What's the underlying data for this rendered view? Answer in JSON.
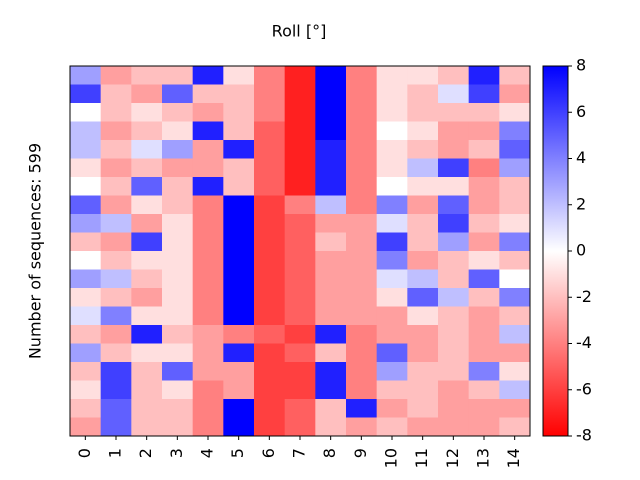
{
  "chart_data": {
    "type": "heatmap",
    "title": "Roll [°]",
    "ylabel": "Number of sequences: 599",
    "categories": [
      0,
      1,
      2,
      3,
      4,
      5,
      6,
      7,
      8,
      9,
      10,
      11,
      12,
      13,
      14
    ],
    "colormap": [
      "#ff0000",
      "#ffffff",
      "#0000ff"
    ],
    "zlim": [
      -8,
      8
    ],
    "zticks": [
      -8,
      -6,
      -4,
      -2,
      0,
      2,
      4,
      6,
      8
    ],
    "values": [
      [
        3,
        -3,
        -2,
        -2,
        7,
        -1,
        -4,
        -7,
        8,
        -4,
        -1,
        -1,
        -2,
        7,
        -2
      ],
      [
        6,
        -2,
        -3,
        5,
        -2,
        -2,
        -4,
        -7,
        8,
        -4,
        -1,
        -2,
        1,
        6,
        -3
      ],
      [
        0,
        -2,
        -1,
        -2,
        -3,
        -2,
        -4,
        -7,
        8,
        -4,
        -1,
        -2,
        -2,
        -2,
        -1
      ],
      [
        2,
        -3,
        -2,
        -1,
        7,
        -2,
        -5,
        -7,
        8,
        -4,
        0,
        -1,
        -3,
        -3,
        4
      ],
      [
        2,
        -2,
        1,
        3,
        -3,
        7,
        -5,
        -7,
        7,
        -4,
        -1,
        -2,
        -3,
        -2,
        5
      ],
      [
        -1,
        -3,
        -2,
        -3,
        -3,
        -2,
        -5,
        -7,
        7,
        -4,
        -1,
        2,
        6,
        -4,
        3
      ],
      [
        0,
        -2,
        5,
        -2,
        7,
        -2,
        -5,
        -7,
        7,
        -4,
        0,
        -1,
        -1,
        -3,
        -2
      ],
      [
        5,
        -3,
        -1,
        -2,
        -4,
        8,
        -6,
        -4,
        2,
        -4,
        4,
        -3,
        5,
        -3,
        -2
      ],
      [
        3,
        2,
        -3,
        -1,
        -4,
        8,
        -6,
        -5,
        -3,
        -3,
        1,
        -2,
        6,
        -2,
        -1
      ],
      [
        -2,
        -3,
        6,
        -1,
        -4,
        8,
        -6,
        -5,
        -2,
        -3,
        6,
        -2,
        3,
        -3,
        4
      ],
      [
        0,
        -2,
        -1,
        -1,
        -4,
        8,
        -6,
        -5,
        -3,
        -3,
        4,
        -3,
        -2,
        -1,
        -2
      ],
      [
        3,
        2,
        -2,
        -1,
        -4,
        8,
        -6,
        -5,
        -3,
        -3,
        1,
        2,
        -2,
        5,
        0
      ],
      [
        -1,
        -2,
        -3,
        -1,
        -4,
        8,
        -6,
        -5,
        -3,
        -3,
        -1,
        5,
        2,
        -2,
        4
      ],
      [
        1,
        4,
        -1,
        -1,
        -4,
        8,
        -6,
        -5,
        -3,
        -3,
        -3,
        -1,
        -2,
        -3,
        -2
      ],
      [
        -2,
        -3,
        7,
        -2,
        -3,
        -4,
        -5,
        -6,
        7,
        -4,
        -3,
        -3,
        -2,
        -3,
        2
      ],
      [
        3,
        -2,
        -1,
        -1,
        -3,
        7,
        -6,
        -5,
        -2,
        -4,
        5,
        -3,
        -2,
        -3,
        -3
      ],
      [
        -2,
        6,
        -2,
        5,
        -3,
        -3,
        -6,
        -6,
        7,
        -4,
        3,
        -2,
        -2,
        4,
        -1
      ],
      [
        -1,
        6,
        -2,
        -1,
        -4,
        -3,
        -6,
        -6,
        7,
        -4,
        -2,
        -2,
        -3,
        -2,
        2
      ],
      [
        -2,
        5,
        -2,
        -2,
        -4,
        8,
        -6,
        -5,
        -2,
        7,
        -3,
        -2,
        -3,
        -3,
        -3
      ],
      [
        -3,
        5,
        -2,
        -2,
        -4,
        8,
        -6,
        -5,
        -2,
        -3,
        -2,
        -3,
        -3,
        -3,
        -2
      ]
    ]
  }
}
